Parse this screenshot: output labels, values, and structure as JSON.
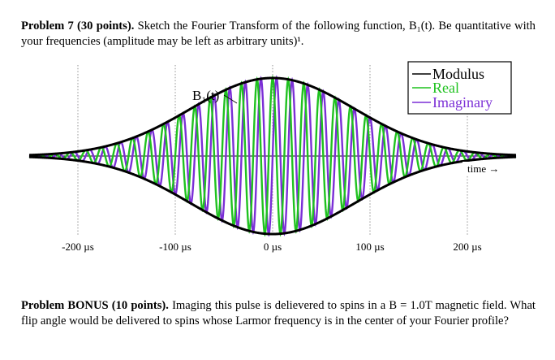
{
  "problem7": {
    "heading": "Problem 7 (30 points).",
    "text": " Sketch the Fourier Transform of the following function, B₁(t). Be quantitative with your frequencies (amplitude may be left as arbitrary units)¹."
  },
  "bonus": {
    "heading": "Problem BONUS (10 points).",
    "text": " Imaging this pulse is delievered to spins in a B = 1.0T magnetic field. What flip angle would be delivered to spins whose Larmor frequency is in the center of your Fourier profile?"
  },
  "chart_data": {
    "type": "line",
    "title": "",
    "curve_label": "B₁(t)",
    "xlabel": "time →",
    "ylabel": "",
    "x_unit": "µs",
    "xlim": [
      -250,
      250
    ],
    "x_ticks": [
      -200,
      -100,
      0,
      100,
      200
    ],
    "x_tick_labels": [
      "-200 µs",
      "-100 µs",
      "0 µs",
      "100 µs",
      "200 µs"
    ],
    "ylim": [
      -1.05,
      1.05
    ],
    "grid": "dotted vertical lines at tick positions",
    "legend": {
      "position": "top-right",
      "entries": [
        {
          "name": "Modulus",
          "color": "#000000"
        },
        {
          "name": "Real",
          "color": "#1fc21f"
        },
        {
          "name": "Imaginary",
          "color": "#7b2fd6"
        }
      ]
    },
    "series": [
      {
        "name": "Modulus",
        "color": "#000000",
        "model": "gaussian",
        "center": 0,
        "sigma_us": 84,
        "peak": 0.98
      },
      {
        "name": "Real",
        "color": "#1fc21f",
        "model": "modulus * cos(2π f t)",
        "frequency_MHz": 0.0625
      },
      {
        "name": "Imaginary",
        "color": "#7b2fd6",
        "model": "modulus * sin(2π f t)",
        "frequency_MHz": 0.0625
      }
    ]
  }
}
